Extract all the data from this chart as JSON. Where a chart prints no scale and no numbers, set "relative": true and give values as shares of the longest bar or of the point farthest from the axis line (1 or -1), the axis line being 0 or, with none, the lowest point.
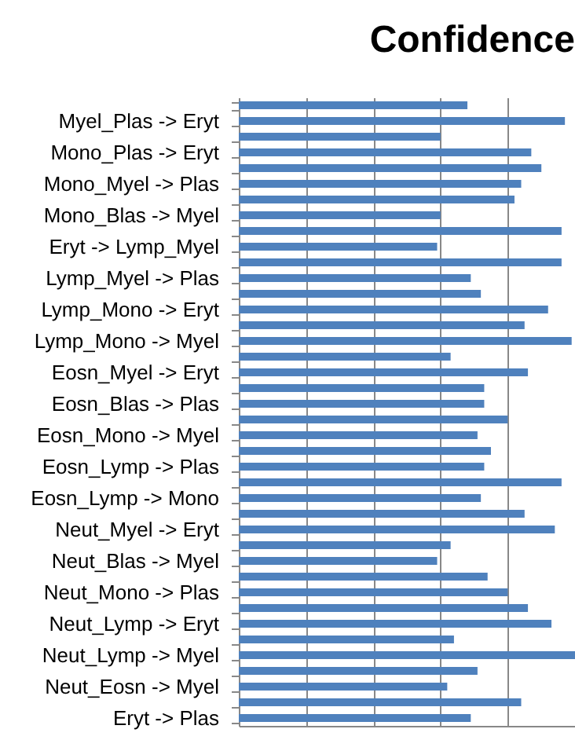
{
  "chart_data": {
    "type": "bar",
    "orientation": "horizontal",
    "relative": true,
    "title": "Confidence",
    "categories": [
      null,
      "Myel_Plas -> Eryt",
      null,
      "Mono_Plas -> Eryt",
      null,
      "Mono_Myel -> Plas",
      null,
      "Mono_Blas -> Myel",
      null,
      "Eryt -> Lymp_Myel",
      null,
      "Lymp_Myel -> Plas",
      null,
      "Lymp_Mono -> Eryt",
      null,
      "Lymp_Mono -> Myel",
      null,
      "Eosn_Myel -> Eryt",
      null,
      "Eosn_Blas -> Plas",
      null,
      "Eosn_Mono -> Myel",
      null,
      "Eosn_Lymp -> Plas",
      null,
      "Eosn_Lymp -> Mono",
      null,
      "Neut_Myel -> Eryt",
      null,
      "Neut_Blas -> Myel",
      null,
      "Neut_Mono -> Plas",
      null,
      "Neut_Lymp -> Eryt",
      null,
      "Neut_Lymp -> Myel",
      null,
      "Neut_Eosn -> Myel",
      null,
      "Eryt -> Plas"
    ],
    "values": [
      0.68,
      0.97,
      0.6,
      0.87,
      0.9,
      0.84,
      0.82,
      0.6,
      0.96,
      0.59,
      0.96,
      0.69,
      0.72,
      0.92,
      0.85,
      0.99,
      0.63,
      0.86,
      0.73,
      0.73,
      0.8,
      0.71,
      0.75,
      0.73,
      0.96,
      0.72,
      0.85,
      0.94,
      0.63,
      0.59,
      0.74,
      0.8,
      0.86,
      0.93,
      0.64,
      1.0,
      0.71,
      0.62,
      0.84,
      0.69
    ],
    "color": "#4f81bd",
    "grid": "x",
    "tick_labels": "y"
  }
}
